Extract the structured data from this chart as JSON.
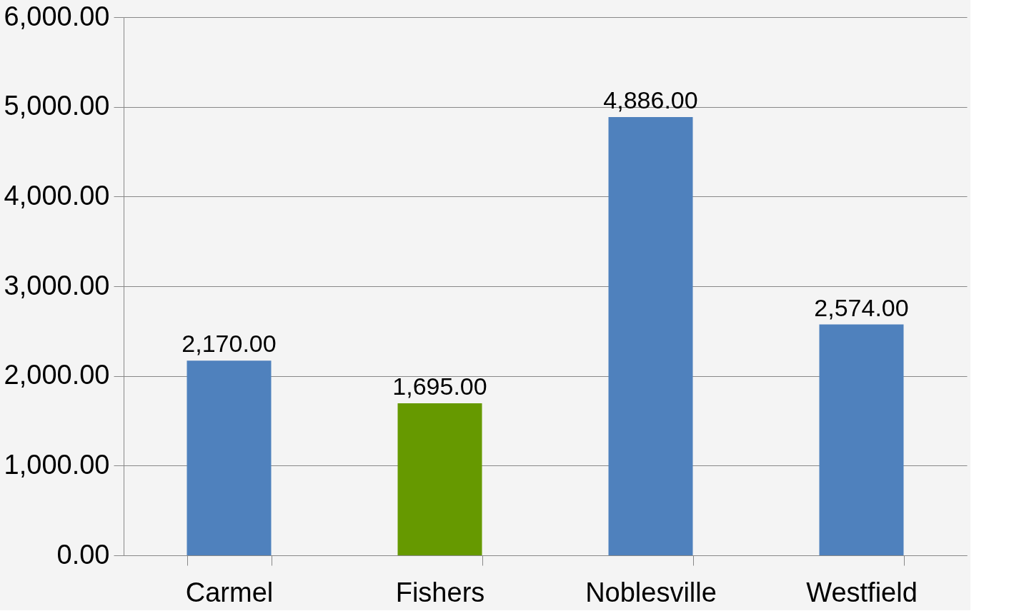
{
  "chart_data": {
    "type": "bar",
    "categories": [
      "Carmel",
      "Fishers",
      "Noblesville",
      "Westfield"
    ],
    "values": [
      2170,
      1695,
      4886,
      2574
    ],
    "colors": [
      "#4f81bd",
      "#669900",
      "#4f81bd",
      "#4f81bd"
    ],
    "value_labels": [
      "2,170.00",
      "1,695.00",
      "4,886.00",
      "2,574.00"
    ],
    "ylim": [
      0,
      6000
    ],
    "yticks": [
      {
        "value": 0,
        "label": "0.00"
      },
      {
        "value": 1000,
        "label": "1,000.00"
      },
      {
        "value": 2000,
        "label": "2,000.00"
      },
      {
        "value": 3000,
        "label": "3,000.00"
      },
      {
        "value": 4000,
        "label": "4,000.00"
      },
      {
        "value": 5000,
        "label": "5,000.00"
      },
      {
        "value": 6000,
        "label": "6,000.00"
      }
    ],
    "grid": "y",
    "legend": false
  }
}
